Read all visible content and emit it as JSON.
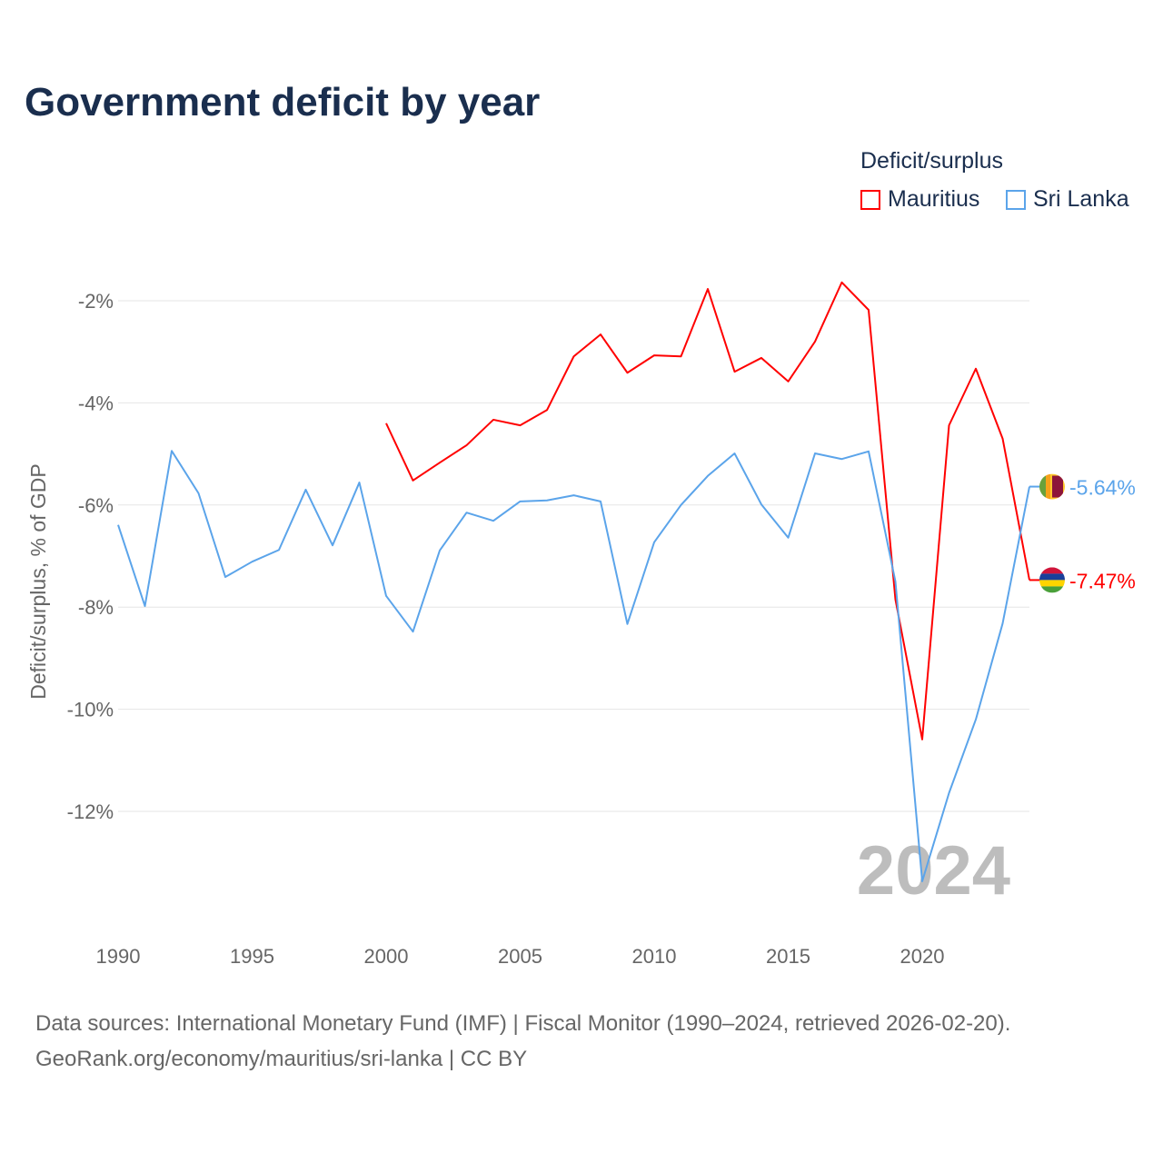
{
  "chart_data": {
    "type": "line",
    "title": "Government deficit by year",
    "ylabel": "Deficit/surplus, % of GDP",
    "xlabel": "",
    "xlim": [
      1990,
      2024
    ],
    "ylim": [
      -14.2,
      -1.0
    ],
    "x_ticks": [
      1990,
      1995,
      2000,
      2005,
      2010,
      2015,
      2020
    ],
    "y_ticks": [
      -2,
      -4,
      -6,
      -8,
      -10,
      -12
    ],
    "y_tick_labels": [
      "-2%",
      "-4%",
      "-6%",
      "-8%",
      "-10%",
      "-12%"
    ],
    "grid": true,
    "legend": {
      "title": "Deficit/surplus",
      "placement": "top-right"
    },
    "watermark_year": "2024",
    "series": [
      {
        "name": "Mauritius",
        "color": "#ff0000",
        "end_label": "-7.47%",
        "flag": "mauritius-flag",
        "x": [
          2000,
          2001,
          2002,
          2003,
          2004,
          2005,
          2006,
          2007,
          2008,
          2009,
          2010,
          2011,
          2012,
          2013,
          2014,
          2015,
          2016,
          2017,
          2018,
          2019,
          2020,
          2021,
          2022,
          2023,
          2024
        ],
        "values": [
          -4.4,
          -5.52,
          -5.17,
          -4.83,
          -4.33,
          -4.44,
          -4.14,
          -3.09,
          -2.66,
          -3.41,
          -3.07,
          -3.09,
          -1.77,
          -3.39,
          -3.12,
          -3.58,
          -2.8,
          -1.64,
          -2.18,
          -7.85,
          -10.59,
          -4.44,
          -3.33,
          -4.7,
          -7.47
        ]
      },
      {
        "name": "Sri Lanka",
        "color": "#5ba4ea",
        "end_label": "-5.64%",
        "flag": "sri-lanka-flag",
        "x": [
          1990,
          1991,
          1992,
          1993,
          1994,
          1995,
          1996,
          1997,
          1998,
          1999,
          2000,
          2001,
          2002,
          2003,
          2004,
          2005,
          2006,
          2007,
          2008,
          2009,
          2010,
          2011,
          2012,
          2013,
          2014,
          2015,
          2016,
          2017,
          2018,
          2019,
          2020,
          2021,
          2022,
          2023,
          2024
        ],
        "values": [
          -6.39,
          -7.98,
          -4.94,
          -5.77,
          -7.41,
          -7.11,
          -6.88,
          -5.7,
          -6.79,
          -5.56,
          -7.78,
          -8.48,
          -6.89,
          -6.15,
          -6.31,
          -5.93,
          -5.91,
          -5.81,
          -5.93,
          -8.33,
          -6.73,
          -6.0,
          -5.43,
          -4.99,
          -5.99,
          -6.64,
          -4.99,
          -5.1,
          -4.95,
          -7.5,
          -13.37,
          -11.64,
          -10.2,
          -8.32,
          -5.64
        ]
      }
    ]
  },
  "footer": {
    "line1": "Data sources: International Monetary Fund (IMF) | Fiscal Monitor (1990–2024, retrieved 2026-02-20).",
    "line2": "GeoRank.org/economy/mauritius/sri-lanka | CC BY"
  }
}
